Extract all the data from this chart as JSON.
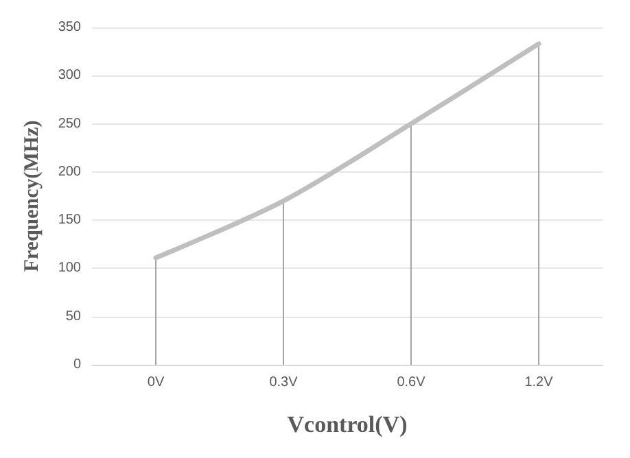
{
  "chart_data": {
    "type": "line",
    "xlabel": "Vcontrol(V)",
    "ylabel": "Frequency(MHz)",
    "categories": [
      "0V",
      "0.3V",
      "0.6V",
      "1.2V"
    ],
    "series": [
      {
        "type": "bar",
        "color": "#a6a6a6",
        "values": [
          111,
          170,
          250,
          333
        ]
      },
      {
        "color": "#bfbfbf",
        "values": [
          111,
          170,
          250,
          333
        ]
      }
    ],
    "ylim": [
      0,
      350
    ],
    "yticks": [
      0,
      50,
      100,
      150,
      200,
      250,
      300,
      350
    ],
    "grid": "y",
    "marker": "none",
    "line_style": "solid"
  }
}
